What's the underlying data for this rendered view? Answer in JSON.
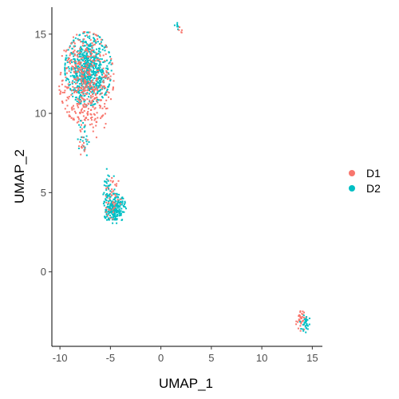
{
  "chart_data": {
    "type": "scatter",
    "xlabel": "UMAP_1",
    "ylabel": "UMAP_2",
    "xlim": [
      -10.8,
      16.0
    ],
    "ylim": [
      -4.7,
      16.7
    ],
    "xticks": [
      -10,
      -5,
      0,
      5,
      10,
      15
    ],
    "yticks": [
      0,
      5,
      10,
      15
    ],
    "grid": false,
    "legend_position": "right",
    "point_colors": {
      "D1": "#F8766D",
      "D2": "#00BFC4"
    },
    "legend": [
      {
        "name": "D1",
        "color": "#F8766D"
      },
      {
        "name": "D2",
        "color": "#00BFC4"
      }
    ],
    "clusters": [
      {
        "series": "D2",
        "cx": -7.2,
        "cy": 12.8,
        "sx": 1.1,
        "sy": 1.1,
        "n": 700
      },
      {
        "series": "D1",
        "cx": -7.4,
        "cy": 12.2,
        "sx": 1.3,
        "sy": 1.4,
        "n": 380
      },
      {
        "series": "D1",
        "cx": -7.2,
        "cy": 10.0,
        "sx": 0.9,
        "sy": 0.8,
        "n": 70
      },
      {
        "series": "D2",
        "cx": -7.6,
        "cy": 8.5,
        "sx": 0.3,
        "sy": 0.6,
        "n": 25
      },
      {
        "series": "D1",
        "cx": -7.8,
        "cy": 8.0,
        "sx": 0.2,
        "sy": 0.3,
        "n": 12
      },
      {
        "series": "D2",
        "cx": -4.6,
        "cy": 4.0,
        "sx": 0.55,
        "sy": 0.45,
        "n": 230
      },
      {
        "series": "D1",
        "cx": -4.8,
        "cy": 4.8,
        "sx": 0.4,
        "sy": 0.7,
        "n": 45
      },
      {
        "series": "D2",
        "cx": -5.2,
        "cy": 5.5,
        "sx": 0.3,
        "sy": 0.5,
        "n": 30
      },
      {
        "series": "D2",
        "cx": 1.6,
        "cy": 15.5,
        "sx": 0.12,
        "sy": 0.12,
        "n": 8
      },
      {
        "series": "D1",
        "cx": 2.0,
        "cy": 15.3,
        "sx": 0.1,
        "sy": 0.1,
        "n": 5
      },
      {
        "series": "D1",
        "cx": 13.9,
        "cy": -3.1,
        "sx": 0.25,
        "sy": 0.3,
        "n": 35
      },
      {
        "series": "D2",
        "cx": 14.3,
        "cy": -3.3,
        "sx": 0.25,
        "sy": 0.3,
        "n": 35
      }
    ]
  }
}
